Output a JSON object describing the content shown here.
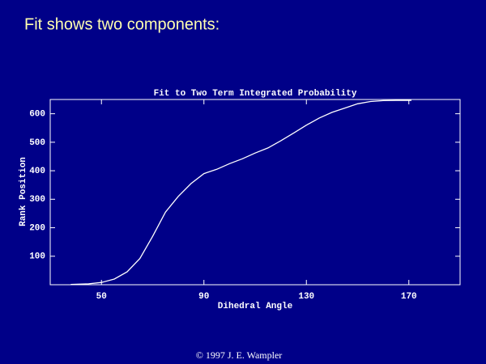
{
  "slide": {
    "title": "Fit shows two components:",
    "footer": "© 1997 J. E. Wampler"
  },
  "chart_data": {
    "type": "line",
    "title": "Fit to Two Term Integrated Probability",
    "x_label": "Dihedral Angle",
    "y_label": "Rank Position",
    "x": [
      38,
      45,
      50,
      55,
      60,
      65,
      70,
      75,
      80,
      85,
      90,
      95,
      100,
      105,
      110,
      115,
      120,
      125,
      130,
      135,
      140,
      145,
      150,
      155,
      160,
      165,
      171
    ],
    "values": [
      1,
      3,
      8,
      20,
      45,
      92,
      170,
      255,
      310,
      355,
      390,
      405,
      425,
      442,
      462,
      480,
      505,
      532,
      560,
      585,
      605,
      620,
      635,
      643,
      646,
      647,
      647
    ],
    "color": "#ffffff",
    "xlim": [
      30,
      190
    ],
    "xticks": [
      50,
      90,
      130,
      170
    ],
    "ylim": [
      0,
      650
    ],
    "yticks": [
      100,
      200,
      300,
      400,
      500,
      600
    ],
    "grid": false
  }
}
